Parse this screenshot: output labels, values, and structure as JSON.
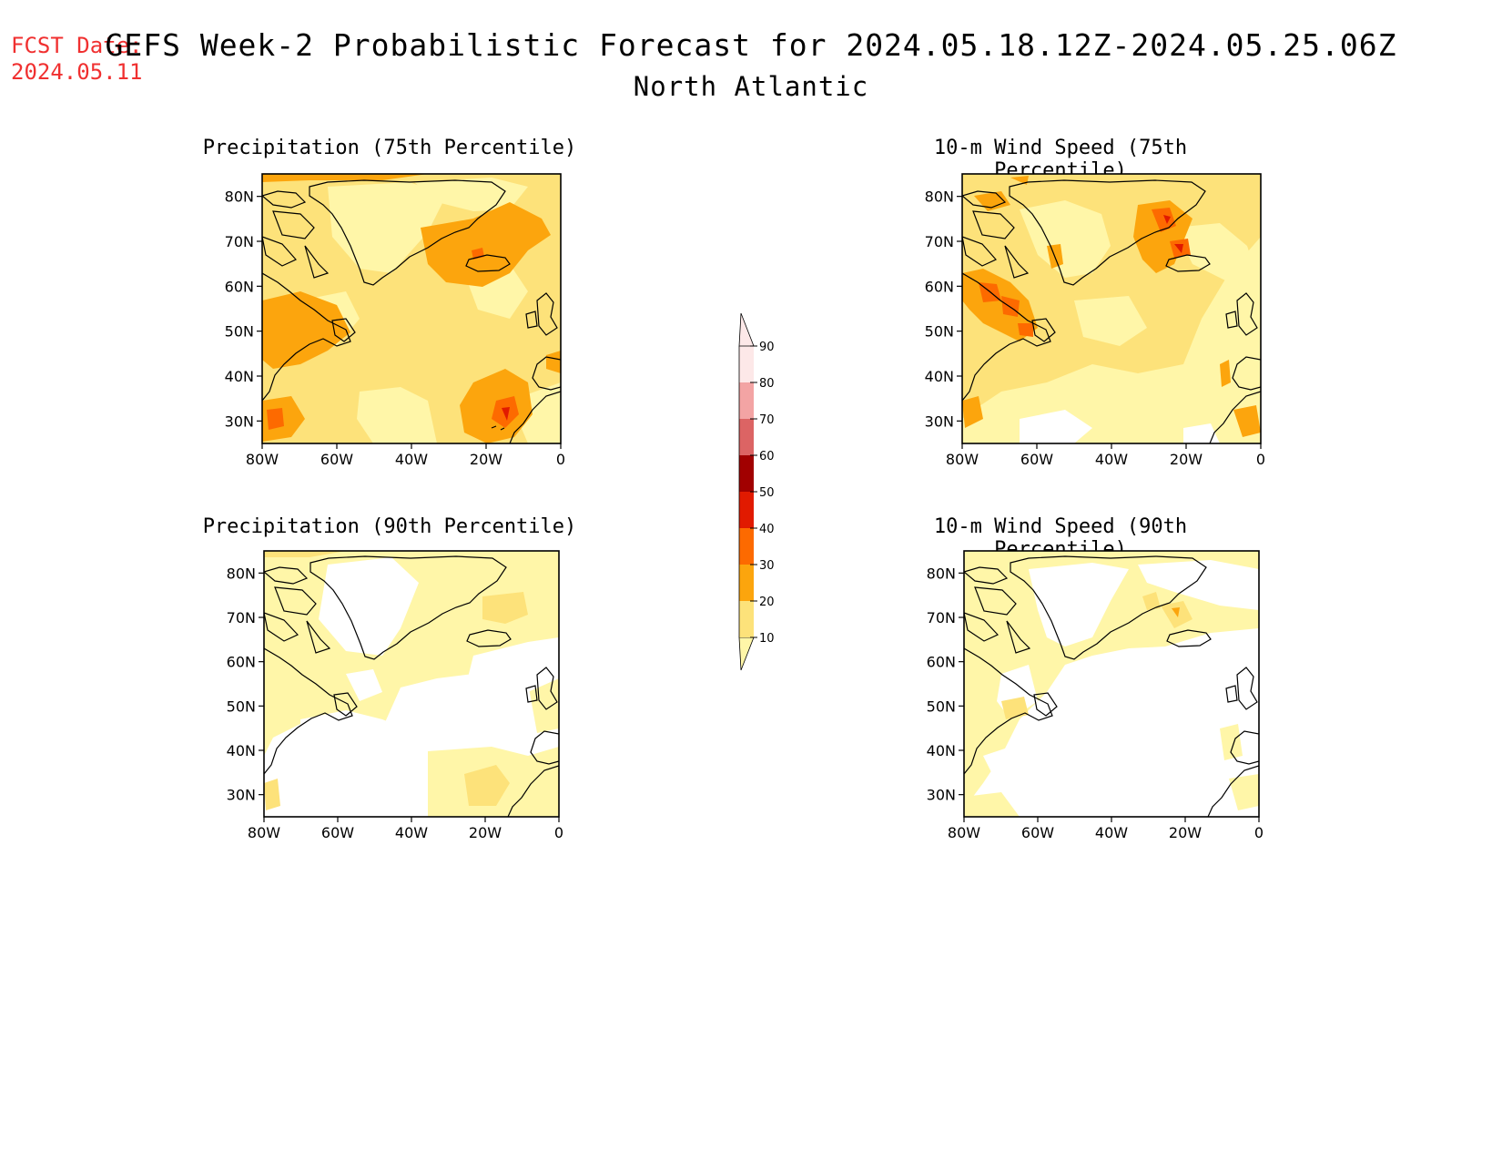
{
  "header": {
    "fcst_label": "FCST Date:",
    "fcst_date": "2024.05.11",
    "title": "GEFS Week-2 Probabilistic Forecast for 2024.05.18.12Z-2024.05.25.06Z",
    "subtitle": "North Atlantic"
  },
  "panels": [
    {
      "id": "precip75",
      "title": "Precipitation (75th Percentile)",
      "base_level": 20
    },
    {
      "id": "wind75",
      "title": "10-m Wind Speed (75th Percentile)",
      "base_level": 10
    },
    {
      "id": "precip90",
      "title": "Precipitation (90th Percentile)",
      "base_level": 10
    },
    {
      "id": "wind90",
      "title": "10-m Wind Speed (90th Percentile)",
      "base_level": 0
    }
  ],
  "axes": {
    "lat_ticks": [
      "80N",
      "70N",
      "60N",
      "50N",
      "40N",
      "30N"
    ],
    "lon_ticks": [
      "80W",
      "60W",
      "40W",
      "20W",
      "0"
    ]
  },
  "colorbar": {
    "levels": [
      "10",
      "20",
      "30",
      "40",
      "50",
      "60",
      "70",
      "80",
      "90"
    ],
    "colors": [
      "#fff6a8",
      "#fde27a",
      "#fca50d",
      "#fd6a00",
      "#e11a00",
      "#a10000",
      "#dc6464",
      "#f3a4a4",
      "#fde8e8"
    ]
  }
}
